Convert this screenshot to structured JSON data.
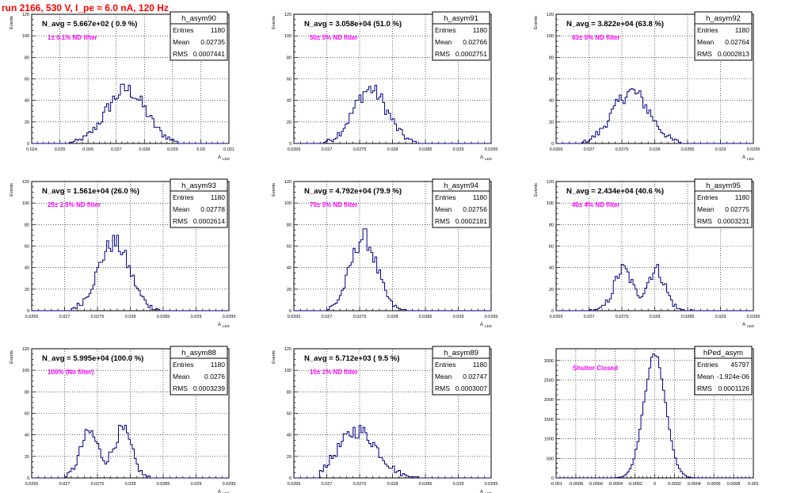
{
  "run_title": "run 2166,   530 V, I_pe ≈ 6.0 nA, 120 Hz",
  "colors": {
    "title": "#ff0000",
    "annotation": "#ff00ff",
    "histogram": "#000080",
    "frame": "#000000",
    "grid": "#000000"
  },
  "chart_data": [
    {
      "type": "histogram",
      "stats_title": "h_asym90",
      "navg": "N_avg = 5.667e+02 ( 0.9 %)",
      "annotation": "1± 0.1% ND filter",
      "ylabel": "Events",
      "xlabel": "A",
      "xlabel_sub": "LED",
      "stats": [
        [
          "Entries",
          "1180"
        ],
        [
          "Mean",
          "0.02735"
        ],
        [
          "RMS",
          "0.0007441"
        ]
      ],
      "xlim": [
        0.024,
        0.031
      ],
      "ylim": [
        0,
        120
      ],
      "xticks": [
        "0.024",
        "0.025",
        "0.026",
        "0.027",
        "0.028",
        "0.029",
        "0.03",
        "0.031"
      ],
      "yticks": [
        "0",
        "20",
        "40",
        "60",
        "80",
        "100",
        "120"
      ],
      "peaks": [
        {
          "x": 0.02735,
          "sigma": 0.0007,
          "amp": 50
        }
      ],
      "span": [
        0.0253,
        0.0292
      ]
    },
    {
      "type": "histogram",
      "stats_title": "h_asym91",
      "navg": "N_avg = 3.058e+04 (51.0 %)",
      "annotation": "50± 5% ND filter",
      "ylabel": "Events",
      "xlabel": "A",
      "xlabel_sub": "LED",
      "stats": [
        [
          "Entries",
          "1180"
        ],
        [
          "Mean",
          "0.02766"
        ],
        [
          "RMS",
          "0.0002751"
        ]
      ],
      "xlim": [
        0.0265,
        0.0295
      ],
      "ylim": [
        0,
        120
      ],
      "xticks": [
        "0.0265",
        "0.027",
        "0.0275",
        "0.028",
        "0.0285",
        "0.029",
        "0.0295"
      ],
      "yticks": [
        "0",
        "20",
        "40",
        "60",
        "80",
        "100",
        "120"
      ],
      "peaks": [
        {
          "x": 0.02766,
          "sigma": 0.00026,
          "amp": 50
        }
      ],
      "span": [
        0.02695,
        0.02835
      ]
    },
    {
      "type": "histogram",
      "stats_title": "h_asym92",
      "navg": "N_avg = 3.822e+04 (63.8 %)",
      "annotation": "63± 5% ND filter",
      "ylabel": "Events",
      "xlabel": "A",
      "xlabel_sub": "LED",
      "stats": [
        [
          "Entries",
          "1180"
        ],
        [
          "Mean",
          "0.02764"
        ],
        [
          "RMS",
          "0.0002813"
        ]
      ],
      "xlim": [
        0.0265,
        0.0295
      ],
      "ylim": [
        0,
        120
      ],
      "xticks": [
        "0.0265",
        "0.027",
        "0.0275",
        "0.028",
        "0.0285",
        "0.029",
        "0.0295"
      ],
      "yticks": [
        "0",
        "20",
        "40",
        "60",
        "80",
        "100",
        "120"
      ],
      "peaks": [
        {
          "x": 0.02764,
          "sigma": 0.00028,
          "amp": 48
        }
      ],
      "span": [
        0.0269,
        0.0284
      ]
    },
    {
      "type": "histogram",
      "stats_title": "h_asym93",
      "navg": "N_avg = 1.561e+04 (26.0 %)",
      "annotation": "25± 2.5% ND filter",
      "ylabel": "Events",
      "xlabel": "A",
      "xlabel_sub": "LED",
      "stats": [
        [
          "Entries",
          "1180"
        ],
        [
          "Mean",
          "0.02778"
        ],
        [
          "RMS",
          "0.0002614"
        ]
      ],
      "xlim": [
        0.0265,
        0.0295
      ],
      "ylim": [
        0,
        120
      ],
      "xticks": [
        "0.0265",
        "0.027",
        "0.0275",
        "0.028",
        "0.0285",
        "0.029",
        "0.0295"
      ],
      "yticks": [
        "0",
        "20",
        "40",
        "60",
        "80",
        "100",
        "120"
      ],
      "peaks": [
        {
          "x": 0.02775,
          "sigma": 0.00024,
          "amp": 63
        }
      ],
      "span": [
        0.0271,
        0.02845
      ]
    },
    {
      "type": "histogram",
      "stats_title": "h_asym94",
      "navg": "N_avg = 4.792e+04 (79.9 %)",
      "annotation": "79± 5% ND filter",
      "ylabel": "Events",
      "xlabel": "A",
      "xlabel_sub": "LED",
      "stats": [
        [
          "Entries",
          "1180"
        ],
        [
          "Mean",
          "0.02756"
        ],
        [
          "RMS",
          "0.0002181"
        ]
      ],
      "xlim": [
        0.0265,
        0.0295
      ],
      "ylim": [
        0,
        120
      ],
      "xticks": [
        "0.0265",
        "0.027",
        "0.0275",
        "0.028",
        "0.0285",
        "0.029",
        "0.0295"
      ],
      "yticks": [
        "0",
        "20",
        "40",
        "60",
        "80",
        "100",
        "120"
      ],
      "peaks": [
        {
          "x": 0.02756,
          "sigma": 0.0002,
          "amp": 68
        }
      ],
      "span": [
        0.027,
        0.0282
      ]
    },
    {
      "type": "histogram",
      "stats_title": "h_asym95",
      "navg": "N_avg = 2.434e+04 (40.6 %)",
      "annotation": "40± 4% ND filter",
      "ylabel": "Events",
      "xlabel": "A",
      "xlabel_sub": "LED",
      "stats": [
        [
          "Entries",
          "1180"
        ],
        [
          "Mean",
          "0.02775"
        ],
        [
          "RMS",
          "0.0003231"
        ]
      ],
      "xlim": [
        0.0265,
        0.0295
      ],
      "ylim": [
        0,
        120
      ],
      "xticks": [
        "0.0265",
        "0.027",
        "0.0275",
        "0.028",
        "0.0285",
        "0.029",
        "0.0295"
      ],
      "yticks": [
        "0",
        "20",
        "40",
        "60",
        "80",
        "100",
        "120"
      ],
      "peaks": [
        {
          "x": 0.02752,
          "sigma": 0.00014,
          "amp": 38
        },
        {
          "x": 0.02802,
          "sigma": 0.00014,
          "amp": 38
        }
      ],
      "span": [
        0.027,
        0.0286
      ]
    },
    {
      "type": "histogram",
      "stats_title": "h_asym88",
      "navg": "N_avg = 5.995e+04 (100.0 %)",
      "annotation": "100% (No filter)",
      "ylabel": "Events",
      "xlabel": "A",
      "xlabel_sub": "LED",
      "stats": [
        [
          "Entries",
          "1180"
        ],
        [
          "Mean",
          "0.0276"
        ],
        [
          "RMS",
          "0.0003239"
        ]
      ],
      "xlim": [
        0.0265,
        0.0295
      ],
      "ylim": [
        0,
        120
      ],
      "xticks": [
        "0.0265",
        "0.027",
        "0.0275",
        "0.028",
        "0.0285",
        "0.029",
        "0.0295"
      ],
      "yticks": [
        "0",
        "20",
        "40",
        "60",
        "80",
        "100",
        "120"
      ],
      "peaks": [
        {
          "x": 0.02738,
          "sigma": 0.00014,
          "amp": 42
        },
        {
          "x": 0.02788,
          "sigma": 0.00014,
          "amp": 44
        }
      ],
      "span": [
        0.027,
        0.0283
      ]
    },
    {
      "type": "histogram",
      "stats_title": "h_asym89",
      "navg": "N_avg = 5.712e+03 ( 9.5 %)",
      "annotation": "10± 1% ND filter",
      "ylabel": "Events",
      "xlabel": "A",
      "xlabel_sub": "LED",
      "stats": [
        [
          "Entries",
          "1180"
        ],
        [
          "Mean",
          "0.02747"
        ],
        [
          "RMS",
          "0.0003007"
        ]
      ],
      "xlim": [
        0.0265,
        0.0295
      ],
      "ylim": [
        0,
        120
      ],
      "xticks": [
        "0.0265",
        "0.027",
        "0.0275",
        "0.028",
        "0.0285",
        "0.029",
        "0.0295"
      ],
      "yticks": [
        "0",
        "20",
        "40",
        "60",
        "80",
        "100",
        "120"
      ],
      "peaks": [
        {
          "x": 0.02747,
          "sigma": 0.0003,
          "amp": 44
        }
      ],
      "span": [
        0.0269,
        0.0284
      ]
    },
    {
      "type": "histogram",
      "stats_title": "hPed_asym",
      "navg": "",
      "annotation": "Shutter Closed",
      "ylabel": "",
      "xlabel": "",
      "xlabel_sub": "",
      "stats": [
        [
          "Entries",
          "45797"
        ],
        [
          "Mean",
          "-1.924e-06"
        ],
        [
          "RMS",
          "0.0001126"
        ]
      ],
      "xlim": [
        -0.001,
        0.001
      ],
      "ylim": [
        0,
        3300
      ],
      "xticks": [
        "-0.001",
        "-0.0008",
        "-0.0006",
        "-0.0004",
        "-0.0002",
        "0",
        "0.0002",
        "0.0004",
        "0.0006",
        "0.0008",
        "0.001"
      ],
      "yticks": [
        "0",
        "500",
        "1000",
        "1500",
        "2000",
        "2500",
        "3000"
      ],
      "peaks": [
        {
          "x": 0.0,
          "sigma": 0.00011,
          "amp": 3150
        }
      ],
      "span": [
        -0.00045,
        0.00045
      ]
    }
  ]
}
